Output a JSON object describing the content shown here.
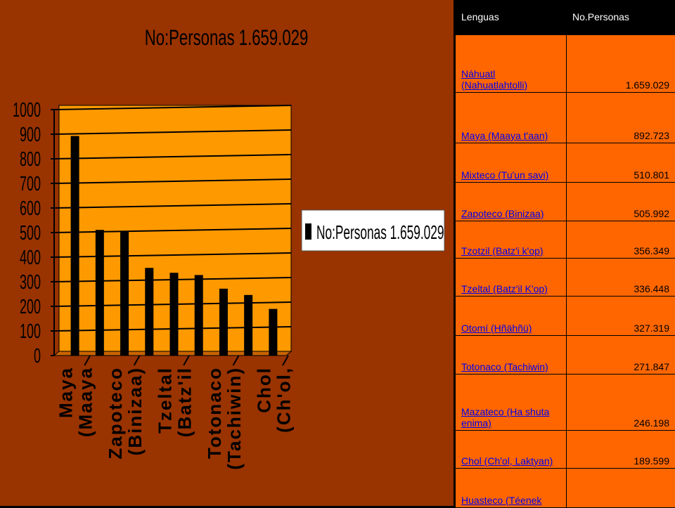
{
  "chart_data": {
    "type": "bar",
    "title": "No:Personas 1.659.029",
    "legend": {
      "label": "No:Personas 1.659.029",
      "position": "right"
    },
    "categories": [
      "Maya (Maaya",
      "",
      "Zapoteco (Binizaa)",
      "",
      "Tzeltal (Batz'il",
      "",
      "Totonaco (Tachiwin)",
      "",
      "Chol (Ch'ol,"
    ],
    "category_ticks": [
      {
        "line1": "Maya",
        "line2": "(Maaya"
      },
      {
        "line1": "Zapoteco",
        "line2": "(Binizaa)"
      },
      {
        "line1": "Tzeltal",
        "line2": "(Batz'il"
      },
      {
        "line1": "Totonaco",
        "line2": "(Tachiwin)"
      },
      {
        "line1": "Chol",
        "line2": "(Ch'ol,"
      }
    ],
    "series": [
      {
        "name": "No:Personas 1.659.029",
        "values": [
          892.723,
          510.801,
          505.992,
          356.349,
          336.448,
          327.319,
          271.847,
          246.198,
          189.599
        ],
        "color": "#000000"
      }
    ],
    "ylim": [
      0,
      1000
    ],
    "yticks": [
      0,
      100,
      200,
      300,
      400,
      500,
      600,
      700,
      800,
      900,
      1000
    ],
    "grid": true,
    "colors": {
      "panel": "#993300",
      "plot": "#ff9900",
      "bar": "#000000"
    }
  },
  "table": {
    "headers": [
      "Lenguas",
      "No.Personas"
    ],
    "rows": [
      {
        "lang": "Náhuatl (Nahuatlahtolli)",
        "value": "1.659.029"
      },
      {
        "lang": "Maya (Maaya t'aan)",
        "value": "892.723"
      },
      {
        "lang": "Mixteco (Tu'un savi)",
        "value": "510.801"
      },
      {
        "lang": "Zapoteco (Binizaa)",
        "value": "505.992"
      },
      {
        "lang": "Tzotzil (Batz'i k'op)",
        "value": "356.349"
      },
      {
        "lang": "Tzeltal (Batz'il K'op)",
        "value": "336.448"
      },
      {
        "lang": "Otomí (Hñähñü)",
        "value": "327.319"
      },
      {
        "lang": "Totonaco (Tachiwin)",
        "value": "271.847"
      },
      {
        "lang": "Mazateco (Ha shuta enima)",
        "value": "246.198"
      },
      {
        "lang": "Chol (Ch'ol, Laktyan)",
        "value": "189.599"
      },
      {
        "lang": "Huasteco (Téenek",
        "value": ""
      }
    ],
    "colors": {
      "header_bg": "#000000",
      "cell_bg": "#ff6600",
      "link": "#0000ee"
    }
  }
}
